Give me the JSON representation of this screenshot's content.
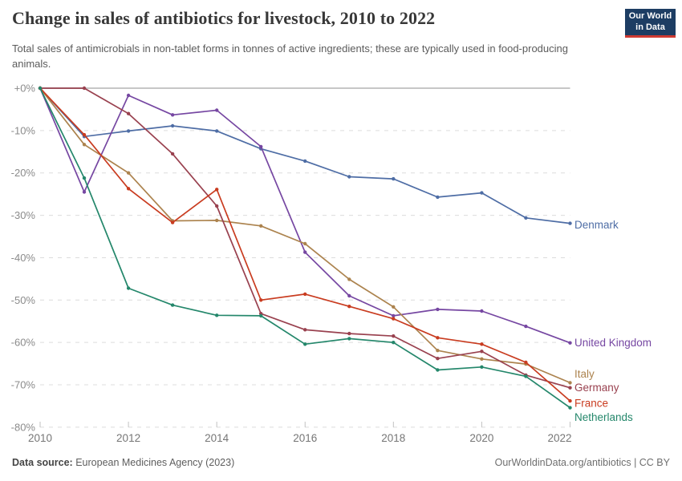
{
  "header": {
    "title": "Change in sales of antibiotics for livestock, 2010 to 2022",
    "subtitle": "Total sales of antimicrobials in non-tablet forms in tonnes of active ingredients; these are typically used in food-producing animals.",
    "logo": {
      "line1": "Our World",
      "line2": "in Data"
    }
  },
  "footer": {
    "source_label": "Data source:",
    "source_text": " European Medicines Agency (2023)",
    "attribution": "OurWorldinData.org/antibiotics | CC BY"
  },
  "colors": {
    "background": "#ffffff",
    "logo_bg": "#1d3d63",
    "logo_accent": "#cf3a32",
    "zero_line": "#c7c7c7",
    "gridline": "#dcdcdc",
    "axis_text": "#8b8b8b",
    "x_axis_text": "#767676"
  },
  "chart_data": {
    "type": "line",
    "title": "Change in sales of antibiotics for livestock, 2010 to 2022",
    "subtitle": "Total sales of antimicrobials in non-tablet forms in tonnes of active ingredients; these are typically used in food-producing animals.",
    "unit": "%",
    "x": [
      2010,
      2011,
      2012,
      2013,
      2014,
      2015,
      2016,
      2017,
      2018,
      2019,
      2020,
      2021,
      2022
    ],
    "x_tick_labels": [
      "2010",
      "2012",
      "2014",
      "2016",
      "2018",
      "2020",
      "2022"
    ],
    "y_tick_labels": [
      "+0%",
      "-10%",
      "-20%",
      "-30%",
      "-40%",
      "-50%",
      "-60%",
      "-70%",
      "-80%"
    ],
    "ylim": [
      -80,
      0
    ],
    "grid": "horizontal-dashed",
    "legend_position": "end-of-line-labels-right",
    "series": [
      {
        "name": "Denmark",
        "color": "#4e6da5",
        "label_dy": 2,
        "values": [
          0,
          -11.4,
          -10.1,
          -8.9,
          -10.1,
          -14.3,
          -17.2,
          -20.9,
          -21.4,
          -25.7,
          -24.7,
          -30.6,
          -31.9
        ]
      },
      {
        "name": "United Kingdom",
        "color": "#7647a2",
        "label_dy": 0,
        "values": [
          0,
          -24.5,
          -1.7,
          -6.3,
          -5.2,
          -13.8,
          -38.7,
          -49.0,
          -53.7,
          -52.2,
          -52.6,
          -56.2,
          -60.1
        ]
      },
      {
        "name": "Italy",
        "color": "#ac834e",
        "label_dy": -11,
        "values": [
          0,
          -13.3,
          -20.0,
          -31.3,
          -31.2,
          -32.5,
          -36.7,
          -45.1,
          -51.6,
          -61.9,
          -63.9,
          -65.1,
          -69.5
        ]
      },
      {
        "name": "Germany",
        "color": "#99414f",
        "label_dy": 0,
        "values": [
          0,
          0,
          -6.0,
          -15.5,
          -27.8,
          -53.2,
          -57.0,
          -57.9,
          -58.5,
          -63.8,
          -62.1,
          -67.7,
          -70.7
        ]
      },
      {
        "name": "France",
        "color": "#c93c20",
        "label_dy": 3,
        "values": [
          0,
          -11.0,
          -23.7,
          -31.7,
          -23.9,
          -50.0,
          -48.6,
          -51.5,
          -54.4,
          -58.9,
          -60.4,
          -64.7,
          -73.8
        ]
      },
      {
        "name": "Netherlands",
        "color": "#24876b",
        "label_dy": 12,
        "values": [
          0,
          -21.2,
          -47.2,
          -51.2,
          -53.6,
          -53.7,
          -60.4,
          -59.1,
          -60.0,
          -66.5,
          -65.8,
          -68.0,
          -75.4
        ]
      }
    ]
  }
}
